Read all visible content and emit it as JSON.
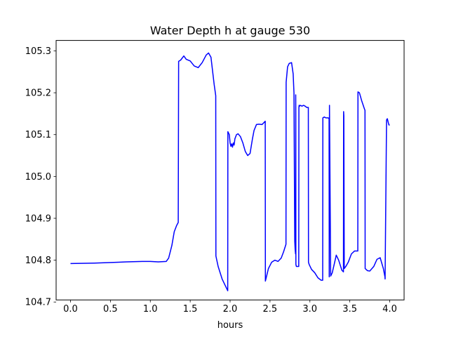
{
  "chart_data": {
    "type": "line",
    "title": "Water Depth h at gauge 530",
    "xlabel": "hours",
    "ylabel": "",
    "xlim": [
      -0.18,
      4.18
    ],
    "ylim": [
      104.705,
      105.325
    ],
    "x_ticks": [
      0.0,
      0.5,
      1.0,
      1.5,
      2.0,
      2.5,
      3.0,
      3.5,
      4.0
    ],
    "x_tick_labels": [
      "0.0",
      "0.5",
      "1.0",
      "1.5",
      "2.0",
      "2.5",
      "3.0",
      "3.5",
      "4.0"
    ],
    "y_ticks": [
      104.7,
      104.8,
      104.9,
      105.0,
      105.1,
      105.2,
      105.3
    ],
    "y_tick_labels": [
      "104.7",
      "104.8",
      "104.9",
      "105.0",
      "105.1",
      "105.2",
      "105.3"
    ],
    "grid": false,
    "series": [
      {
        "color": "#0000ff",
        "x": [
          0.0,
          0.3,
          0.6,
          0.7,
          0.9,
          1.0,
          1.1,
          1.2,
          1.23,
          1.27,
          1.3,
          1.33,
          1.35,
          1.355,
          1.38,
          1.42,
          1.45,
          1.5,
          1.55,
          1.6,
          1.65,
          1.7,
          1.73,
          1.76,
          1.8,
          1.82,
          1.822,
          1.85,
          1.9,
          1.95,
          1.97,
          1.972,
          1.99,
          2.0,
          2.01,
          2.02,
          2.03,
          2.04,
          2.05,
          2.06,
          2.08,
          2.1,
          2.13,
          2.16,
          2.19,
          2.22,
          2.25,
          2.28,
          2.3,
          2.33,
          2.36,
          2.4,
          2.43,
          2.44,
          2.442,
          2.48,
          2.52,
          2.56,
          2.6,
          2.64,
          2.67,
          2.7,
          2.702,
          2.72,
          2.74,
          2.77,
          2.79,
          2.8,
          2.81,
          2.815,
          2.82,
          2.822,
          2.823,
          2.824,
          2.83,
          2.85,
          2.86,
          2.862,
          2.865,
          2.87,
          2.88,
          2.9,
          2.92,
          2.94,
          2.96,
          2.98,
          2.982,
          2.99,
          3.02,
          3.06,
          3.1,
          3.14,
          3.16,
          3.162,
          3.18,
          3.2,
          3.23,
          3.24,
          3.242,
          3.245,
          3.26,
          3.28,
          3.31,
          3.33,
          3.36,
          3.4,
          3.42,
          3.422,
          3.425,
          3.43,
          3.45,
          3.48,
          3.52,
          3.56,
          3.58,
          3.59,
          3.6,
          3.602,
          3.62,
          3.65,
          3.68,
          3.69,
          3.692,
          3.72,
          3.75,
          3.8,
          3.84,
          3.88,
          3.92,
          3.94,
          3.942,
          3.96,
          3.97,
          3.98,
          3.99,
          4.0
        ],
        "values": [
          104.792,
          104.793,
          104.795,
          104.796,
          104.797,
          104.797,
          104.796,
          104.797,
          104.805,
          104.835,
          104.868,
          104.883,
          104.89,
          105.275,
          105.278,
          105.288,
          105.28,
          105.276,
          105.264,
          105.26,
          105.272,
          105.29,
          105.295,
          105.285,
          105.22,
          105.193,
          104.81,
          104.785,
          104.755,
          104.735,
          104.727,
          105.107,
          105.1,
          105.08,
          105.072,
          105.078,
          105.07,
          105.08,
          105.075,
          105.09,
          105.1,
          105.102,
          105.095,
          105.08,
          105.06,
          105.05,
          105.055,
          105.09,
          105.11,
          105.124,
          105.125,
          105.124,
          105.13,
          105.132,
          104.75,
          104.78,
          104.795,
          104.8,
          104.797,
          104.805,
          104.82,
          104.838,
          105.225,
          105.262,
          105.27,
          105.272,
          105.245,
          105.2,
          104.845,
          104.825,
          104.815,
          105.195,
          105.15,
          104.79,
          104.785,
          104.785,
          104.785,
          105.165,
          105.17,
          105.168,
          105.17,
          105.168,
          105.17,
          105.168,
          105.165,
          105.165,
          104.795,
          104.79,
          104.778,
          104.77,
          104.758,
          104.752,
          104.752,
          105.14,
          105.142,
          105.14,
          105.14,
          105.138,
          104.76,
          105.17,
          104.762,
          104.77,
          104.795,
          104.812,
          104.8,
          104.776,
          104.772,
          105.155,
          105.145,
          104.78,
          104.785,
          104.795,
          104.815,
          104.822,
          104.822,
          104.822,
          104.822,
          105.202,
          105.2,
          105.18,
          105.163,
          105.158,
          104.78,
          104.775,
          104.774,
          104.785,
          104.802,
          104.806,
          104.78,
          104.76,
          104.755,
          105.135,
          105.138,
          105.13,
          105.123,
          105.123
        ]
      }
    ]
  }
}
